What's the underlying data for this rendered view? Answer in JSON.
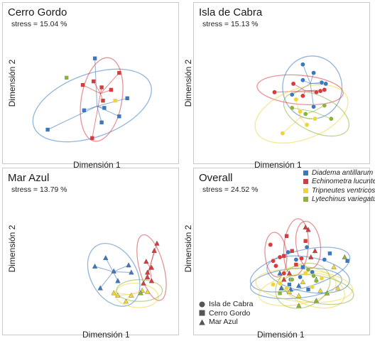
{
  "colors": {
    "Diadema antillarum": "#3d78bf",
    "Echinometra lucunter": "#d63b3f",
    "Tripneutes ventricosus": "#efd43a",
    "Lytechinus variegatus": "#8db33c"
  },
  "axis_labels": {
    "x": "Dimensión 1",
    "y": "Dimensión 2"
  },
  "legend": {
    "species": [
      "Diadema antillarum",
      "Echinometra lucunter",
      "Tripneutes ventricosus",
      "Lytechinus variegatus"
    ],
    "sites": [
      {
        "label": "Isla de Cabra",
        "shape": "circle"
      },
      {
        "label": "Cerro Gordo",
        "shape": "square"
      },
      {
        "label": "Mar Azul",
        "shape": "triangle"
      }
    ]
  },
  "chart_data": [
    {
      "type": "scatter",
      "title": "Cerro Gordo",
      "stress": "stress = 15.04 %",
      "marker": "square",
      "xlabel": "Dimensión 1",
      "ylabel": "Dimensión 2",
      "xlim": [
        0,
        10
      ],
      "ylim": [
        0,
        10
      ],
      "series": [
        {
          "name": "Diadema antillarum",
          "points": [
            [
              4.4,
              8.4
            ],
            [
              3.6,
              4.1
            ],
            [
              5.1,
              4.3
            ],
            [
              6.2,
              3.6
            ],
            [
              6.8,
              5.1
            ],
            [
              0.9,
              2.5
            ],
            [
              4.9,
              3.1
            ]
          ],
          "ellipse": {
            "center": [
              4.2,
              4.5
            ],
            "radii": [
              4.6,
              2.6
            ],
            "angle": 20
          }
        },
        {
          "name": "Echinometra lucunter",
          "points": [
            [
              3.5,
              6.2
            ],
            [
              4.3,
              6.5
            ],
            [
              4.9,
              6.0
            ],
            [
              5.6,
              5.8
            ],
            [
              6.2,
              7.2
            ],
            [
              4.2,
              1.8
            ],
            [
              5.0,
              4.9
            ]
          ],
          "ellipse": {
            "center": [
              4.9,
              5.0
            ],
            "radii": [
              1.5,
              3.5
            ],
            "angle": -10
          }
        },
        {
          "name": "Tripneutes ventricosus",
          "points": [
            [
              5.9,
              4.9
            ]
          ]
        },
        {
          "name": "Lytechinus variegatus",
          "points": [
            [
              2.3,
              6.8
            ]
          ]
        }
      ]
    },
    {
      "type": "scatter",
      "title": "Isla de Cabra",
      "stress": "stress = 15.13 %",
      "marker": "circle",
      "xlabel": "Dimensión 1",
      "ylabel": "Dimensión 2",
      "xlim": [
        0,
        10
      ],
      "ylim": [
        0,
        10
      ],
      "series": [
        {
          "name": "Diadema antillarum",
          "points": [
            [
              5.6,
              7.9
            ],
            [
              6.4,
              7.2
            ],
            [
              7.0,
              6.4
            ],
            [
              7.3,
              6.3
            ],
            [
              6.4,
              4.4
            ],
            [
              4.8,
              5.4
            ],
            [
              5.6,
              6.6
            ]
          ],
          "ellipse": {
            "center": [
              6.3,
              6.0
            ],
            "radii": [
              2.2,
              2.6
            ],
            "angle": 0
          }
        },
        {
          "name": "Echinometra lucunter",
          "points": [
            [
              3.5,
              5.6
            ],
            [
              5.6,
              5.3
            ],
            [
              6.6,
              5.6
            ],
            [
              6.9,
              5.7
            ],
            [
              7.2,
              5.8
            ],
            [
              4.9,
              6.3
            ]
          ],
          "ellipse": {
            "center": [
              5.4,
              5.8
            ],
            "radii": [
              3.2,
              1.2
            ],
            "angle": -5
          }
        },
        {
          "name": "Tripneutes ventricosus",
          "points": [
            [
              4.1,
              2.2
            ],
            [
              5.1,
              5.0
            ],
            [
              6.5,
              3.4
            ],
            [
              5.4,
              4.0
            ],
            [
              5.9,
              2.9
            ]
          ],
          "ellipse": {
            "center": [
              5.5,
              3.8
            ],
            "radii": [
              3.6,
              2.1
            ],
            "angle": 20
          }
        },
        {
          "name": "Lytechinus variegatus",
          "points": [
            [
              4.8,
              4.3
            ],
            [
              7.7,
              3.4
            ],
            [
              5.8,
              3.8
            ],
            [
              7.2,
              4.5
            ]
          ],
          "ellipse": {
            "center": [
              6.6,
              3.8
            ],
            "radii": [
              2.6,
              1.5
            ],
            "angle": -25
          }
        }
      ]
    },
    {
      "type": "scatter",
      "title": "Mar Azul",
      "stress": "stress = 13.79 %",
      "marker": "triangle",
      "xlabel": "Dimensión 1",
      "ylabel": "Dimensión 2",
      "xlim": [
        0,
        10
      ],
      "ylim": [
        0,
        10
      ],
      "series": [
        {
          "name": "Diadema antillarum",
          "points": [
            [
              5.2,
              5.7
            ],
            [
              6.9,
              5.1
            ],
            [
              7.1,
              4.5
            ],
            [
              6.1,
              3.8
            ],
            [
              4.8,
              3.2
            ],
            [
              4.4,
              5.0
            ],
            [
              5.8,
              4.6
            ]
          ],
          "ellipse": {
            "center": [
              5.8,
              4.3
            ],
            "radii": [
              1.7,
              2.8
            ],
            "angle": 30
          }
        },
        {
          "name": "Echinometra lucunter",
          "points": [
            [
              9.0,
              6.9
            ],
            [
              8.8,
              6.3
            ],
            [
              8.2,
              5.4
            ],
            [
              8.3,
              4.1
            ],
            [
              8.6,
              3.8
            ],
            [
              8.0,
              3.6
            ],
            [
              8.6,
              4.9
            ],
            [
              8.3,
              4.5
            ]
          ],
          "ellipse": {
            "center": [
              8.6,
              4.9
            ],
            "radii": [
              0.9,
              2.8
            ],
            "angle": 15
          }
        },
        {
          "name": "Tripneutes ventricosus",
          "points": [
            [
              7.9,
              3.0
            ],
            [
              8.3,
              2.9
            ],
            [
              7.1,
              2.6
            ],
            [
              6.7,
              2.1
            ],
            [
              6.1,
              2.6
            ],
            [
              5.8,
              2.8
            ]
          ],
          "ellipse": {
            "center": [
              7.5,
              2.6
            ],
            "radii": [
              1.6,
              1.0
            ],
            "angle": -5
          }
        },
        {
          "name": "Lytechinus variegatus",
          "points": [
            [
              7.8,
              2.8
            ]
          ],
          "ellipse": {
            "center": [
              7.7,
              3.0
            ],
            "radii": [
              1.7,
              0.9
            ],
            "angle": 0
          }
        }
      ]
    },
    {
      "type": "scatter",
      "title": "Overall",
      "stress": "stress = 24.52 %",
      "marker": "mixed",
      "xlabel": "Dimensión 1",
      "ylabel": "Dimensión 2",
      "xlim": [
        0,
        10
      ],
      "ylim": [
        0,
        10
      ],
      "series": [
        {
          "name": "Diadema antillarum",
          "points": [
            [
              4.5,
              6.0,
              "c"
            ],
            [
              5.9,
              6.4,
              "c"
            ],
            [
              7.2,
              5.4,
              "c"
            ],
            [
              6.3,
              4.4,
              "c"
            ],
            [
              5.1,
              5.4,
              "c"
            ],
            [
              4.7,
              3.8,
              "c"
            ],
            [
              5.4,
              4.0,
              "c"
            ],
            [
              7.6,
              5.9,
              "s"
            ],
            [
              8.9,
              5.3,
              "s"
            ],
            [
              5.6,
              4.8,
              "s"
            ],
            [
              6.0,
              3.0,
              "s"
            ],
            [
              4.6,
              3.4,
              "s"
            ],
            [
              5.3,
              3.3,
              "t"
            ],
            [
              6.6,
              3.8,
              "t"
            ],
            [
              3.9,
              4.3,
              "t"
            ],
            [
              4.7,
              3.0,
              "t"
            ],
            [
              4.0,
              3.1,
              "t"
            ]
          ]
        },
        {
          "name": "Echinometra lucunter",
          "points": [
            [
              3.2,
              6.6,
              "c"
            ],
            [
              3.6,
              4.9,
              "c"
            ],
            [
              3.4,
              5.3,
              "c"
            ],
            [
              3.9,
              5.6,
              "c"
            ],
            [
              4.2,
              4.3,
              "c"
            ],
            [
              5.5,
              5.5,
              "c"
            ],
            [
              5.8,
              6.9,
              "s"
            ],
            [
              4.4,
              7.3,
              "s"
            ],
            [
              4.8,
              6.1,
              "s"
            ],
            [
              5.1,
              5.0,
              "s"
            ],
            [
              4.2,
              5.7,
              "s"
            ],
            [
              6.0,
              7.8,
              "t"
            ],
            [
              5.8,
              8.0,
              "t"
            ],
            [
              6.5,
              6.1,
              "t"
            ],
            [
              6.2,
              5.6,
              "t"
            ],
            [
              4.6,
              4.3,
              "t"
            ],
            [
              4.2,
              3.8,
              "t"
            ]
          ]
        },
        {
          "name": "Tripneutes ventricosus",
          "points": [
            [
              3.4,
              3.4,
              "c"
            ],
            [
              3.9,
              3.5,
              "c"
            ],
            [
              4.4,
              3.1,
              "c"
            ],
            [
              6.3,
              3.2,
              "c"
            ],
            [
              7.0,
              3.9,
              "c"
            ],
            [
              5.8,
              4.3,
              "s"
            ],
            [
              4.6,
              2.8,
              "t"
            ],
            [
              5.3,
              2.5,
              "t"
            ],
            [
              6.9,
              2.9,
              "t"
            ],
            [
              7.9,
              4.8,
              "t"
            ],
            [
              8.2,
              3.1,
              "t"
            ],
            [
              5.6,
              3.6,
              "t"
            ]
          ]
        },
        {
          "name": "Lytechinus variegatus",
          "points": [
            [
              6.0,
              4.6,
              "c"
            ],
            [
              6.4,
              4.1,
              "c"
            ],
            [
              4.8,
              3.8,
              "c"
            ],
            [
              6.6,
              3.7,
              "c"
            ],
            [
              3.9,
              2.7,
              "s"
            ],
            [
              5.3,
              1.7,
              "t"
            ],
            [
              6.6,
              2.1,
              "t"
            ],
            [
              8.7,
              5.6,
              "t"
            ],
            [
              7.4,
              2.7,
              "t"
            ]
          ]
        }
      ],
      "ellipses": [
        {
          "series": "Diadema antillarum",
          "center": [
            5.4,
            4.6
          ],
          "radii": [
            3.8,
            1.5
          ],
          "angle": 15
        },
        {
          "series": "Diadema antillarum",
          "center": [
            6.0,
            4.2
          ],
          "radii": [
            3.1,
            1.4
          ],
          "angle": -10
        },
        {
          "series": "Diadema antillarum",
          "center": [
            5.1,
            3.5
          ],
          "radii": [
            3.4,
            1.2
          ],
          "angle": 5
        },
        {
          "series": "Echinometra lucunter",
          "center": [
            3.6,
            5.8
          ],
          "radii": [
            0.8,
            1.8
          ],
          "angle": 5
        },
        {
          "series": "Echinometra lucunter",
          "center": [
            5.1,
            6.4
          ],
          "radii": [
            0.9,
            2.3
          ],
          "angle": -5
        },
        {
          "series": "Echinometra lucunter",
          "center": [
            6.0,
            6.6
          ],
          "radii": [
            0.9,
            1.9
          ],
          "angle": 8
        },
        {
          "series": "Tripneutes ventricosus",
          "center": [
            5.7,
            3.3
          ],
          "radii": [
            3.6,
            1.3
          ],
          "angle": -5
        },
        {
          "series": "Tripneutes ventricosus",
          "center": [
            5.2,
            3.0
          ],
          "radii": [
            2.9,
            1.2
          ],
          "angle": 10
        },
        {
          "series": "Tripneutes ventricosus",
          "center": [
            6.3,
            3.2
          ],
          "radii": [
            2.5,
            1.5
          ],
          "angle": -20
        },
        {
          "series": "Lytechinus variegatus",
          "center": [
            6.7,
            3.0
          ],
          "radii": [
            2.7,
            1.1
          ],
          "angle": -10
        },
        {
          "series": "Lytechinus variegatus",
          "center": [
            5.6,
            3.3
          ],
          "radii": [
            2.1,
            1.7
          ],
          "angle": 25
        }
      ]
    }
  ]
}
